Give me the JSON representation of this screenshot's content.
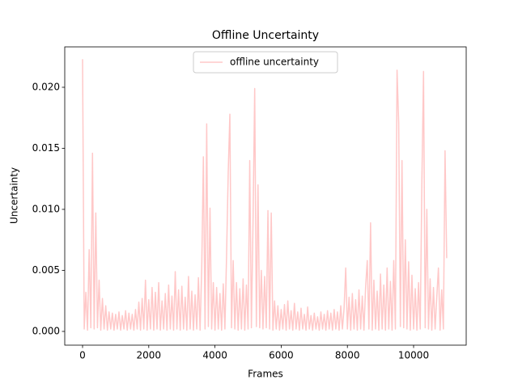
{
  "chart_data": {
    "type": "line",
    "title": "Offline Uncertainty",
    "xlabel": "Frames",
    "ylabel": "Uncertainty",
    "legend": "upper center",
    "xlim": [
      -538,
      11589
    ],
    "ylim": [
      -0.001126,
      0.02331
    ],
    "xticks": [
      0,
      2000,
      4000,
      6000,
      8000,
      10000
    ],
    "yticks": [
      {
        "value": 0,
        "label": "0.000"
      },
      {
        "value": 0.005,
        "label": "0.005"
      },
      {
        "value": 0.01,
        "label": "0.010"
      },
      {
        "value": 0.015,
        "label": "0.015"
      },
      {
        "value": 0.02,
        "label": "0.020"
      }
    ],
    "x": [
      0,
      50,
      100,
      150,
      200,
      250,
      300,
      350,
      400,
      450,
      500,
      550,
      600,
      650,
      700,
      750,
      800,
      850,
      900,
      950,
      1000,
      1050,
      1100,
      1150,
      1200,
      1250,
      1300,
      1350,
      1400,
      1450,
      1500,
      1550,
      1600,
      1650,
      1700,
      1750,
      1800,
      1850,
      1900,
      1950,
      2000,
      2050,
      2100,
      2150,
      2200,
      2250,
      2300,
      2350,
      2400,
      2450,
      2500,
      2550,
      2600,
      2650,
      2700,
      2750,
      2800,
      2850,
      2900,
      2950,
      3000,
      3050,
      3100,
      3150,
      3200,
      3250,
      3300,
      3350,
      3400,
      3450,
      3500,
      3550,
      3600,
      3650,
      3700,
      3750,
      3800,
      3850,
      3900,
      3950,
      4000,
      4050,
      4100,
      4150,
      4200,
      4250,
      4300,
      4350,
      4400,
      4450,
      4500,
      4550,
      4600,
      4650,
      4700,
      4750,
      4800,
      4850,
      4900,
      4950,
      5000,
      5050,
      5100,
      5150,
      5200,
      5250,
      5300,
      5350,
      5400,
      5450,
      5500,
      5550,
      5600,
      5650,
      5700,
      5750,
      5800,
      5850,
      5900,
      5950,
      6000,
      6050,
      6100,
      6150,
      6200,
      6250,
      6300,
      6350,
      6400,
      6450,
      6500,
      6550,
      6600,
      6650,
      6700,
      6750,
      6800,
      6850,
      6900,
      6950,
      7000,
      7050,
      7100,
      7150,
      7200,
      7250,
      7300,
      7350,
      7400,
      7450,
      7500,
      7550,
      7600,
      7650,
      7700,
      7750,
      7800,
      7850,
      7900,
      7950,
      8000,
      8050,
      8100,
      8150,
      8200,
      8250,
      8300,
      8350,
      8400,
      8450,
      8500,
      8550,
      8600,
      8650,
      8700,
      8750,
      8800,
      8850,
      8900,
      8950,
      9000,
      9050,
      9100,
      9150,
      9200,
      9250,
      9300,
      9350,
      9400,
      9450,
      9500,
      9550,
      9600,
      9650,
      9700,
      9750,
      9800,
      9850,
      9900,
      9950,
      10000,
      10050,
      10100,
      10150,
      10200,
      10250,
      10300,
      10350,
      10400,
      10450,
      10500,
      10550,
      10600,
      10650,
      10700,
      10750,
      10800,
      10850,
      10900,
      10950,
      11000
    ],
    "series": [
      {
        "name": "offline uncertainty",
        "color": "#ffc8c8",
        "values": [
          0.0223,
          0.0002,
          0.0032,
          0.0001,
          0.0067,
          0.0003,
          0.0146,
          0.0002,
          0.0097,
          0.0003,
          0.0042,
          0.0001,
          0.0027,
          0.0002,
          0.0021,
          0.0001,
          0.0016,
          0.0002,
          0.0015,
          0.0001,
          0.0014,
          0.0002,
          0.0016,
          0.0001,
          0.0013,
          0.0002,
          0.0017,
          0.0001,
          0.0015,
          0.0002,
          0.0014,
          0.0001,
          0.0018,
          0.0002,
          0.0024,
          0.0001,
          0.0027,
          0.0002,
          0.0042,
          0.0001,
          0.0026,
          0.0002,
          0.0036,
          0.0001,
          0.0032,
          0.0002,
          0.004,
          0.0001,
          0.0025,
          0.0002,
          0.0031,
          0.0001,
          0.0038,
          0.0002,
          0.0029,
          0.0001,
          0.0049,
          0.0002,
          0.0034,
          0.0001,
          0.0037,
          0.0002,
          0.0028,
          0.0001,
          0.0045,
          0.0002,
          0.0033,
          0.0001,
          0.003,
          0.0002,
          0.0044,
          0.0001,
          0.0052,
          0.0143,
          0.0002,
          0.017,
          0.0004,
          0.0101,
          0.0002,
          0.004,
          0.0001,
          0.0036,
          0.0002,
          0.0031,
          0.0001,
          0.0039,
          0.0002,
          0.0062,
          0.013,
          0.0178,
          0.0003,
          0.0058,
          0.0002,
          0.004,
          0.0001,
          0.0035,
          0.0002,
          0.0043,
          0.0001,
          0.0038,
          0.0002,
          0.014,
          0.0003,
          0.009,
          0.0199,
          0.0004,
          0.012,
          0.0003,
          0.005,
          0.0002,
          0.0045,
          0.0003,
          0.0099,
          0.0002,
          0.0097,
          0.0001,
          0.0025,
          0.0002,
          0.0021,
          0.0001,
          0.0018,
          0.0002,
          0.0022,
          0.0001,
          0.0025,
          0.0002,
          0.0017,
          0.0001,
          0.0023,
          0.0002,
          0.0016,
          0.0001,
          0.0019,
          0.0002,
          0.0014,
          0.0001,
          0.002,
          0.0002,
          0.0013,
          0.0001,
          0.0015,
          0.0002,
          0.0012,
          0.0001,
          0.0016,
          0.0002,
          0.0014,
          0.0001,
          0.0017,
          0.0002,
          0.0015,
          0.0001,
          0.0018,
          0.0002,
          0.0016,
          0.0001,
          0.0021,
          0.0002,
          0.0019,
          0.0052,
          0.0002,
          0.0028,
          0.0001,
          0.0031,
          0.0002,
          0.0026,
          0.0001,
          0.0034,
          0.0002,
          0.0029,
          0.0001,
          0.0036,
          0.0058,
          0.0002,
          0.0089,
          0.0001,
          0.0042,
          0.0002,
          0.0033,
          0.0001,
          0.0047,
          0.0002,
          0.0038,
          0.0001,
          0.0052,
          0.0002,
          0.0041,
          0.0001,
          0.0058,
          0.0002,
          0.0214,
          0.0171,
          0.0004,
          0.014,
          0.0003,
          0.0075,
          0.0002,
          0.0057,
          0.0001,
          0.0046,
          0.0002,
          0.0035,
          0.0001,
          0.004,
          0.0002,
          0.0122,
          0.0213,
          0.0003,
          0.01,
          0.0002,
          0.0043,
          0.0001,
          0.0036,
          0.0002,
          0.0028,
          0.0052,
          0.0001,
          0.0034,
          0.0002,
          0.0148,
          0.006
        ]
      }
    ]
  }
}
